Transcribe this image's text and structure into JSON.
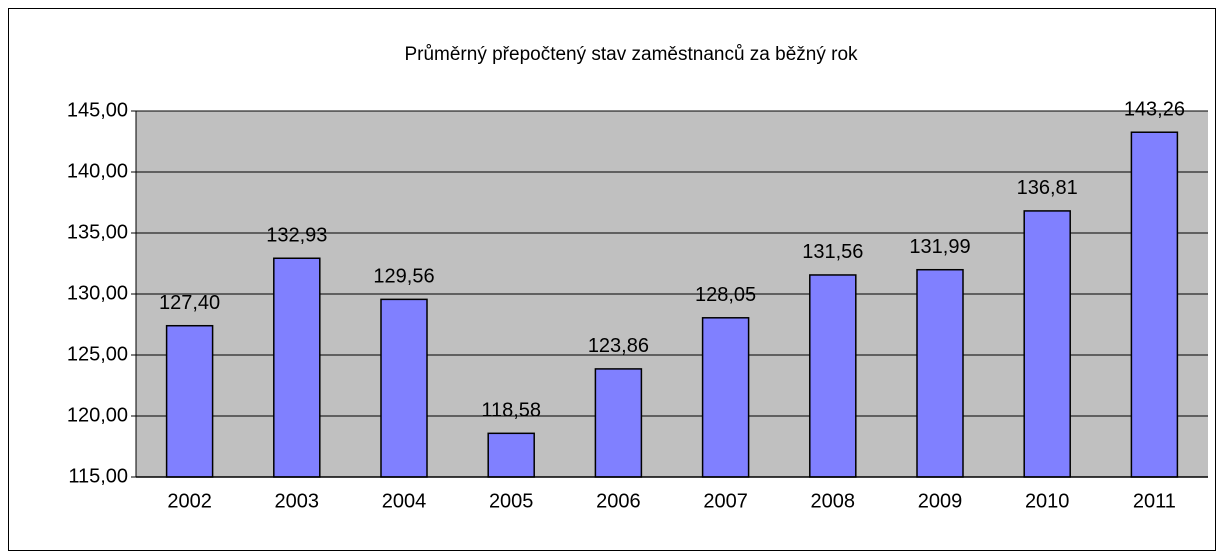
{
  "chart_data": {
    "type": "bar",
    "title": "Průměrný přepočtený stav zaměstnanců za běžný rok",
    "categories": [
      "2002",
      "2003",
      "2004",
      "2005",
      "2006",
      "2007",
      "2008",
      "2009",
      "2010",
      "2011"
    ],
    "values": [
      127.4,
      132.93,
      129.56,
      118.58,
      123.86,
      128.05,
      131.56,
      131.99,
      136.81,
      143.26
    ],
    "value_labels": [
      "127,40",
      "132,93",
      "129,56",
      "118,58",
      "123,86",
      "128,05",
      "131,56",
      "131,99",
      "136,81",
      "143,26"
    ],
    "color": "#8080ff",
    "ylim": [
      115,
      145
    ],
    "yticks": [
      {
        "value": 115,
        "label": "115,00"
      },
      {
        "value": 120,
        "label": "120,00"
      },
      {
        "value": 125,
        "label": "125,00"
      },
      {
        "value": 130,
        "label": "130,00"
      },
      {
        "value": 135,
        "label": "135,00"
      },
      {
        "value": 140,
        "label": "140,00"
      },
      {
        "value": 145,
        "label": "145,00"
      }
    ],
    "grid": true
  }
}
